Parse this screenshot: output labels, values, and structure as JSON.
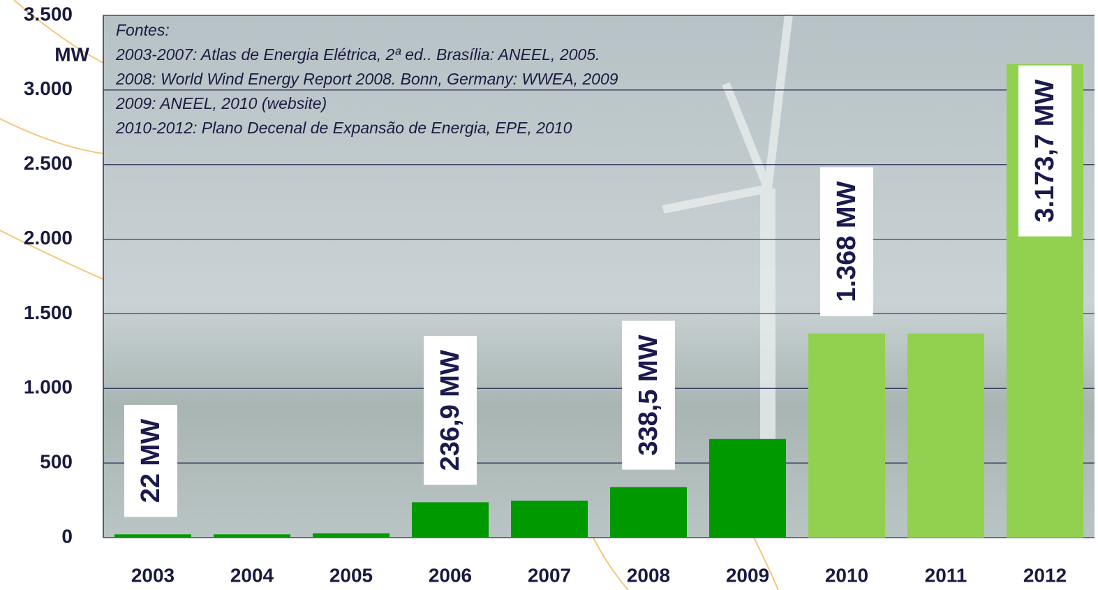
{
  "chart_data": {
    "type": "bar",
    "y_label": "MW",
    "annotations": [
      "Fontes:",
      "2003-2007: Atlas de Energia Elétrica, 2ª ed.. Brasília: ANEEL, 2005.",
      "2008: World Wind Energy Report 2008. Bonn, Germany: WWEA, 2009",
      "2009: ANEEL, 2010 (website)",
      "2010-2012: Plano Decenal de Expansão de Energia, EPE, 2010"
    ],
    "categories": [
      "2003",
      "2004",
      "2005",
      "2006",
      "2007",
      "2008",
      "2009",
      "2010",
      "2011",
      "2012"
    ],
    "values": [
      22,
      22,
      28.6,
      236.9,
      248,
      338.5,
      661,
      1368,
      1368,
      3173.7
    ],
    "value_labels": [
      "22 MW",
      null,
      null,
      "236,9 MW",
      null,
      "338,5 MW",
      null,
      "1.368 MW",
      null,
      "3.173,7 MW"
    ],
    "colors": [
      "#009900",
      "#009900",
      "#009900",
      "#009900",
      "#009900",
      "#009900",
      "#009900",
      "#92d050",
      "#92d050",
      "#92d050"
    ],
    "ylim": [
      0,
      3500
    ],
    "yticks": [
      0,
      500,
      {
        "value": 1000,
        "label": "1.000"
      },
      {
        "value": 1500,
        "label": "1.500"
      },
      {
        "value": 2000,
        "label": "2.000"
      },
      {
        "value": 2500,
        "label": "2.500"
      },
      {
        "value": 3000,
        "label": "3.000"
      },
      {
        "value": 3500,
        "label": "3.500"
      }
    ],
    "grid": true
  }
}
